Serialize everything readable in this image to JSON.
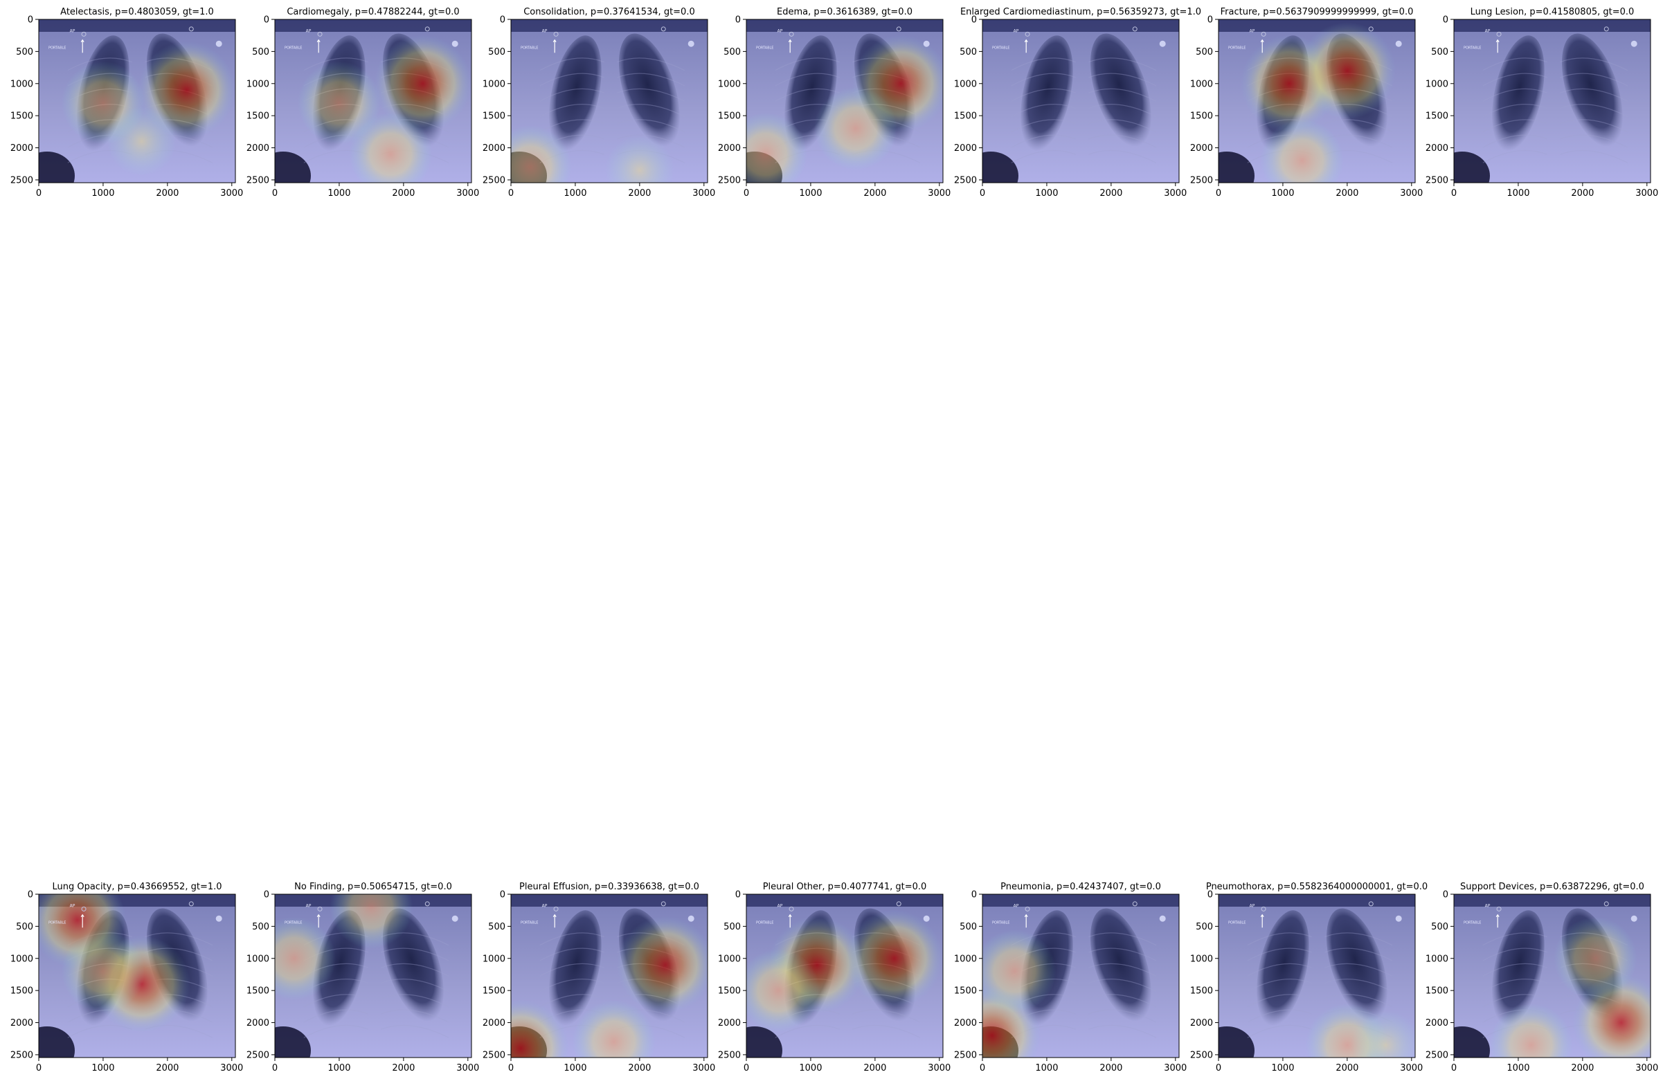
{
  "figure": {
    "rows": 2,
    "cols": 7,
    "background": "#ffffff",
    "x_ticks": [
      "0",
      "1000",
      "2000",
      "3000"
    ],
    "y_ticks": [
      "0",
      "500",
      "1000",
      "1500",
      "2000",
      "2500"
    ]
  },
  "chart_data": [
    {
      "type": "heatmap",
      "title": "Atelectasis, p=0.4803059, gt=1.0",
      "xlim": [
        0,
        3056
      ],
      "ylim": [
        2544,
        0
      ],
      "overlay_text": [
        "AP",
        "PORTABLE"
      ],
      "hotspots": [
        {
          "x": 2300,
          "y": 1100,
          "level": "high"
        },
        {
          "x": 1000,
          "y": 1300,
          "level": "medium"
        },
        {
          "x": 1600,
          "y": 1900,
          "level": "low"
        }
      ]
    },
    {
      "type": "heatmap",
      "title": "Cardiomegaly, p=0.47882244, gt=0.0",
      "xlim": [
        0,
        3056
      ],
      "ylim": [
        2544,
        0
      ],
      "overlay_text": [
        "AP",
        "PORTABLE"
      ],
      "hotspots": [
        {
          "x": 2300,
          "y": 1000,
          "level": "high"
        },
        {
          "x": 1000,
          "y": 1300,
          "level": "medium"
        },
        {
          "x": 1800,
          "y": 2100,
          "level": "medium"
        }
      ]
    },
    {
      "type": "heatmap",
      "title": "Consolidation, p=0.37641534, gt=0.0",
      "xlim": [
        0,
        3056
      ],
      "ylim": [
        2544,
        0
      ],
      "overlay_text": [
        "AP",
        "PORTABLE"
      ],
      "hotspots": [
        {
          "x": 300,
          "y": 2300,
          "level": "medium"
        },
        {
          "x": 2000,
          "y": 2350,
          "level": "low"
        }
      ]
    },
    {
      "type": "heatmap",
      "title": "Edema, p=0.3616389, gt=0.0",
      "xlim": [
        0,
        3056
      ],
      "ylim": [
        2544,
        0
      ],
      "overlay_text": [
        "AP",
        "PORTABLE"
      ],
      "hotspots": [
        {
          "x": 2400,
          "y": 1000,
          "level": "high"
        },
        {
          "x": 300,
          "y": 2100,
          "level": "medium"
        },
        {
          "x": 1700,
          "y": 1700,
          "level": "medium"
        }
      ]
    },
    {
      "type": "heatmap",
      "title": "Enlarged Cardiomediastinum, p=0.56359273, gt=1.0",
      "xlim": [
        0,
        3056
      ],
      "ylim": [
        2544,
        0
      ],
      "overlay_text": [
        "AP",
        "PORTABLE"
      ],
      "hotspots": []
    },
    {
      "type": "heatmap",
      "title": "Fracture, p=0.5637909999999999, gt=0.0",
      "xlim": [
        0,
        3056
      ],
      "ylim": [
        2544,
        0
      ],
      "overlay_text": [
        "AP",
        "PORTABLE"
      ],
      "hotspots": [
        {
          "x": 1100,
          "y": 1000,
          "level": "high"
        },
        {
          "x": 2000,
          "y": 800,
          "level": "high"
        },
        {
          "x": 1300,
          "y": 2200,
          "level": "medium"
        }
      ]
    },
    {
      "type": "heatmap",
      "title": "Lung Lesion, p=0.41580805, gt=0.0",
      "xlim": [
        0,
        3056
      ],
      "ylim": [
        2544,
        0
      ],
      "overlay_text": [
        "AP",
        "PORTABLE"
      ],
      "hotspots": []
    },
    {
      "type": "heatmap",
      "title": "Lung Opacity, p=0.43669552, gt=1.0",
      "xlim": [
        0,
        3056
      ],
      "ylim": [
        2544,
        0
      ],
      "overlay_text": [
        "AP",
        "PORTABLE"
      ],
      "hotspots": [
        {
          "x": 600,
          "y": 400,
          "level": "high"
        },
        {
          "x": 1600,
          "y": 1400,
          "level": "high"
        },
        {
          "x": 1000,
          "y": 1200,
          "level": "medium"
        }
      ]
    },
    {
      "type": "heatmap",
      "title": "No Finding, p=0.50654715, gt=0.0",
      "xlim": [
        0,
        3056
      ],
      "ylim": [
        2544,
        0
      ],
      "overlay_text": [
        "AP",
        "PORTABLE"
      ],
      "hotspots": [
        {
          "x": 1500,
          "y": 200,
          "level": "medium"
        },
        {
          "x": 300,
          "y": 1000,
          "level": "medium"
        }
      ]
    },
    {
      "type": "heatmap",
      "title": "Pleural Effusion, p=0.33936638, gt=0.0",
      "xlim": [
        0,
        3056
      ],
      "ylim": [
        2544,
        0
      ],
      "overlay_text": [
        "AP",
        "PORTABLE"
      ],
      "hotspots": [
        {
          "x": 2400,
          "y": 1100,
          "level": "high"
        },
        {
          "x": 150,
          "y": 2400,
          "level": "high"
        },
        {
          "x": 1600,
          "y": 2300,
          "level": "medium"
        }
      ]
    },
    {
      "type": "heatmap",
      "title": "Pleural Other, p=0.4077741, gt=0.0",
      "xlim": [
        0,
        3056
      ],
      "ylim": [
        2544,
        0
      ],
      "overlay_text": [
        "AP",
        "PORTABLE"
      ],
      "hotspots": [
        {
          "x": 1100,
          "y": 1100,
          "level": "high"
        },
        {
          "x": 2300,
          "y": 1000,
          "level": "high"
        },
        {
          "x": 500,
          "y": 1500,
          "level": "medium"
        }
      ]
    },
    {
      "type": "heatmap",
      "title": "Pneumonia, p=0.42437407, gt=0.0",
      "xlim": [
        0,
        3056
      ],
      "ylim": [
        2544,
        0
      ],
      "overlay_text": [
        "AP",
        "PORTABLE"
      ],
      "hotspots": [
        {
          "x": 150,
          "y": 2200,
          "level": "high"
        },
        {
          "x": 500,
          "y": 1200,
          "level": "medium"
        }
      ]
    },
    {
      "type": "heatmap",
      "title": "Pneumothorax, p=0.5582364000000001, gt=0.0",
      "xlim": [
        0,
        3056
      ],
      "ylim": [
        2544,
        0
      ],
      "overlay_text": [
        "AP",
        "PORTABLE"
      ],
      "hotspots": [
        {
          "x": 2000,
          "y": 2350,
          "level": "medium"
        },
        {
          "x": 2600,
          "y": 2350,
          "level": "low"
        }
      ]
    },
    {
      "type": "heatmap",
      "title": "Support Devices, p=0.63872296, gt=0.0",
      "xlim": [
        0,
        3056
      ],
      "ylim": [
        2544,
        0
      ],
      "overlay_text": [
        "AP",
        "PORTABLE"
      ],
      "hotspots": [
        {
          "x": 2600,
          "y": 2000,
          "level": "high"
        },
        {
          "x": 1200,
          "y": 2350,
          "level": "medium"
        },
        {
          "x": 2200,
          "y": 1000,
          "level": "medium"
        }
      ]
    }
  ]
}
